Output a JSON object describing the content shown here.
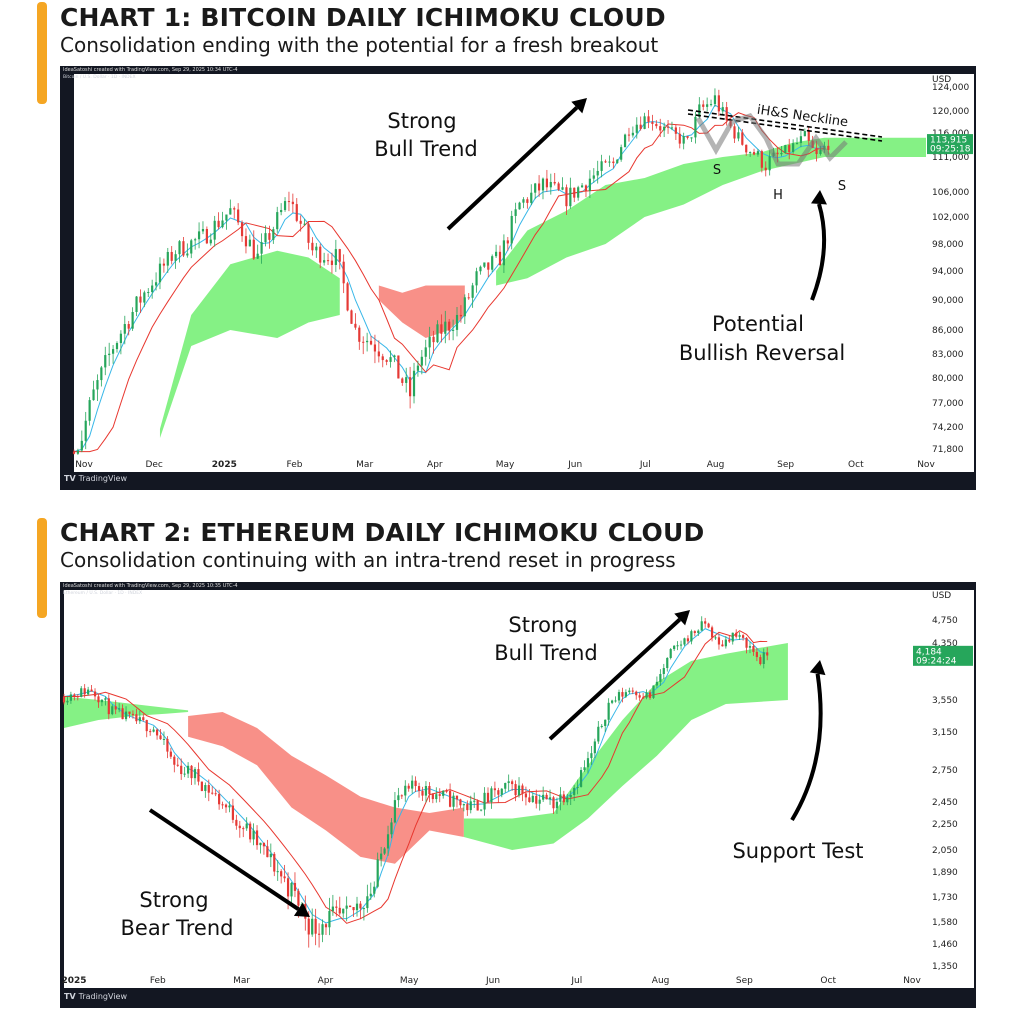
{
  "chart_data": [
    {
      "type": "candlestick",
      "title": "CHART 1: BITCOIN DAILY ICHIMOKU CLOUD",
      "subtitle": "Consolidation ending with the potential for a fresh breakout",
      "credit": "IdeaSatoshi created with TradingView.com, Sep 29, 2025 10:34 UTC-4",
      "symbol_line": "Bitcoin / U.S. Dollar · 1D · INDEX",
      "unit": "USD",
      "brand": "TradingView",
      "x_ticks": [
        "Nov",
        "Dec",
        "2025",
        "Feb",
        "Mar",
        "Apr",
        "May",
        "Jun",
        "Jul",
        "Aug",
        "Sep",
        "Oct",
        "Nov"
      ],
      "y_ticks": [
        124000,
        120000,
        116000,
        111000,
        106000,
        102000,
        98000,
        94000,
        90000,
        86000,
        83000,
        80000,
        77000,
        74200,
        71800
      ],
      "y_tick_labels": [
        "124,000",
        "120,000",
        "116,000",
        "111,000",
        "106,000",
        "102,000",
        "98,000",
        "94,000",
        "90,000",
        "86,000",
        "83,000",
        "80,000",
        "77,000",
        "74,200",
        "71,800"
      ],
      "ylim": [
        71800,
        126000
      ],
      "last_price": "113,915",
      "countdown": "09:25:18",
      "price_path": [
        [
          0,
          70000
        ],
        [
          5,
          78000
        ],
        [
          10,
          84000
        ],
        [
          18,
          91000
        ],
        [
          26,
          97000
        ],
        [
          33,
          99000
        ],
        [
          40,
          103000
        ],
        [
          47,
          96000
        ],
        [
          55,
          105000
        ],
        [
          61,
          97000
        ],
        [
          67,
          96000
        ],
        [
          72,
          86000
        ],
        [
          80,
          83000
        ],
        [
          86,
          78000
        ],
        [
          88,
          82000
        ],
        [
          94,
          86000
        ],
        [
          99,
          88000
        ],
        [
          103,
          93000
        ],
        [
          109,
          96000
        ],
        [
          114,
          104000
        ],
        [
          120,
          107000
        ],
        [
          126,
          105000
        ],
        [
          132,
          108000
        ],
        [
          138,
          110000
        ],
        [
          142,
          117000
        ],
        [
          147,
          119000
        ],
        [
          152,
          116000
        ],
        [
          157,
          114000
        ],
        [
          160,
          120000
        ],
        [
          164,
          122000
        ],
        [
          167,
          118000
        ],
        [
          172,
          113000
        ],
        [
          177,
          110000
        ],
        [
          182,
          112000
        ],
        [
          187,
          115000
        ],
        [
          190,
          111000
        ],
        [
          193,
          113900
        ]
      ],
      "cloud_segments": [
        {
          "color": "green",
          "points": [
            [
              22,
              73000,
              74000
            ],
            [
              30,
              84000,
              88000
            ],
            [
              40,
              86000,
              95000
            ],
            [
              52,
              85000,
              97000
            ],
            [
              60,
              87000,
              96000
            ],
            [
              68,
              88000,
              93000
            ]
          ]
        },
        {
          "color": "red",
          "points": [
            [
              78,
              92000,
              90000
            ],
            [
              84,
              91000,
              87000
            ],
            [
              90,
              92000,
              85000
            ],
            [
              96,
              92000,
              86000
            ],
            [
              100,
              92000,
              88000
            ]
          ]
        },
        {
          "color": "green",
          "points": [
            [
              108,
              94000,
              92000
            ],
            [
              116,
              100000,
              93000
            ],
            [
              126,
              103000,
              96000
            ],
            [
              136,
              107000,
              98000
            ],
            [
              146,
              108000,
              102000
            ],
            [
              156,
              110000,
              104000
            ],
            [
              166,
              111000,
              107000
            ],
            [
              176,
              112000,
              109000
            ],
            [
              184,
              114000,
              110000
            ],
            [
              192,
              115000,
              111000
            ],
            [
              218,
              115000,
              111000
            ]
          ]
        }
      ],
      "annotations": [
        "Strong",
        "Bull Trend",
        "iH&S Neckline",
        "Potential",
        "Bullish Reversal",
        "S",
        "H",
        "S"
      ]
    },
    {
      "type": "candlestick",
      "title": "CHART 2: ETHEREUM DAILY ICHIMOKU CLOUD",
      "subtitle": "Consolidation continuing with an intra-trend reset in progress",
      "credit": "IdeaSatoshi created with TradingView.com, Sep 29, 2025 10:35 UTC-4",
      "symbol_line": "Ethereum / U.S. Dollar · 1D · INDEX",
      "unit": "USD",
      "brand": "TradingView",
      "x_ticks": [
        "2025",
        "Feb",
        "Mar",
        "Apr",
        "May",
        "Jun",
        "Jul",
        "Aug",
        "Sep",
        "Oct",
        "Nov"
      ],
      "y_ticks": [
        4750,
        4350,
        3550,
        3150,
        2750,
        2450,
        2250,
        2050,
        1890,
        1730,
        1580,
        1460,
        1350
      ],
      "y_tick_labels": [
        "4,750",
        "4,350",
        "3,550",
        "3,150",
        "2,750",
        "2,450",
        "2,250",
        "2,050",
        "1,890",
        "1,730",
        "1,580",
        "1,460",
        "1,350"
      ],
      "ylim": [
        1330,
        5000
      ],
      "last_price": "4,184",
      "countdown": "09:24:24",
      "price_path": [
        [
          0,
          3600
        ],
        [
          8,
          3700
        ],
        [
          14,
          3400
        ],
        [
          20,
          3300
        ],
        [
          26,
          3200
        ],
        [
          32,
          2800
        ],
        [
          38,
          2700
        ],
        [
          44,
          2500
        ],
        [
          50,
          2300
        ],
        [
          56,
          2100
        ],
        [
          62,
          1900
        ],
        [
          68,
          1700
        ],
        [
          72,
          1550
        ],
        [
          76,
          1600
        ],
        [
          82,
          1600
        ],
        [
          90,
          1800
        ],
        [
          96,
          2450
        ],
        [
          102,
          2600
        ],
        [
          110,
          2500
        ],
        [
          118,
          2400
        ],
        [
          124,
          2500
        ],
        [
          130,
          2600
        ],
        [
          136,
          2500
        ],
        [
          142,
          2450
        ],
        [
          148,
          2600
        ],
        [
          153,
          2900
        ],
        [
          158,
          3500
        ],
        [
          164,
          3700
        ],
        [
          170,
          3600
        ],
        [
          176,
          4200
        ],
        [
          182,
          4500
        ],
        [
          186,
          4700
        ],
        [
          190,
          4300
        ],
        [
          194,
          4500
        ],
        [
          198,
          4350
        ],
        [
          202,
          4100
        ],
        [
          204,
          4184
        ]
      ],
      "cloud_segments": [
        {
          "color": "green",
          "points": [
            [
              0,
              3200,
              3600
            ],
            [
              10,
              3300,
              3550
            ],
            [
              20,
              3350,
              3500
            ],
            [
              30,
              3380,
              3450
            ],
            [
              36,
              3400,
              3420
            ]
          ]
        },
        {
          "color": "red",
          "points": [
            [
              36,
              3350,
              3100
            ],
            [
              46,
              3400,
              3000
            ],
            [
              56,
              3200,
              2800
            ],
            [
              66,
              2900,
              2400
            ],
            [
              76,
              2700,
              2200
            ],
            [
              86,
              2500,
              2000
            ],
            [
              96,
              2400,
              1950
            ],
            [
              106,
              2350,
              2200
            ],
            [
              116,
              2400,
              2150
            ]
          ]
        },
        {
          "color": "green",
          "points": [
            [
              116,
              2150,
              2300
            ],
            [
              130,
              2050,
              2300
            ],
            [
              142,
              2100,
              2350
            ],
            [
              152,
              2300,
              2800
            ],
            [
              162,
              2600,
              3300
            ],
            [
              172,
              2900,
              3800
            ],
            [
              182,
              3300,
              4100
            ],
            [
              192,
              3500,
              4200
            ],
            [
              210,
              3550,
              4350
            ]
          ]
        }
      ],
      "annotations": [
        "Strong",
        "Bull Trend",
        "Strong",
        "Bear Trend",
        "Support Test"
      ]
    }
  ]
}
